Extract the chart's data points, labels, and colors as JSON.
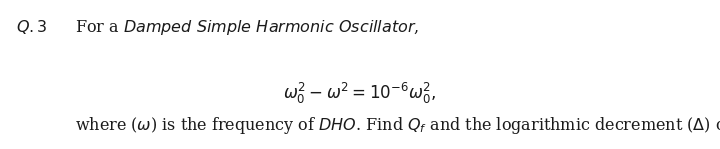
{
  "background_color": "#ffffff",
  "fig_width": 7.2,
  "fig_height": 1.49,
  "dpi": 100,
  "text_color": "#1a1a1a",
  "fontsize": 11.5
}
